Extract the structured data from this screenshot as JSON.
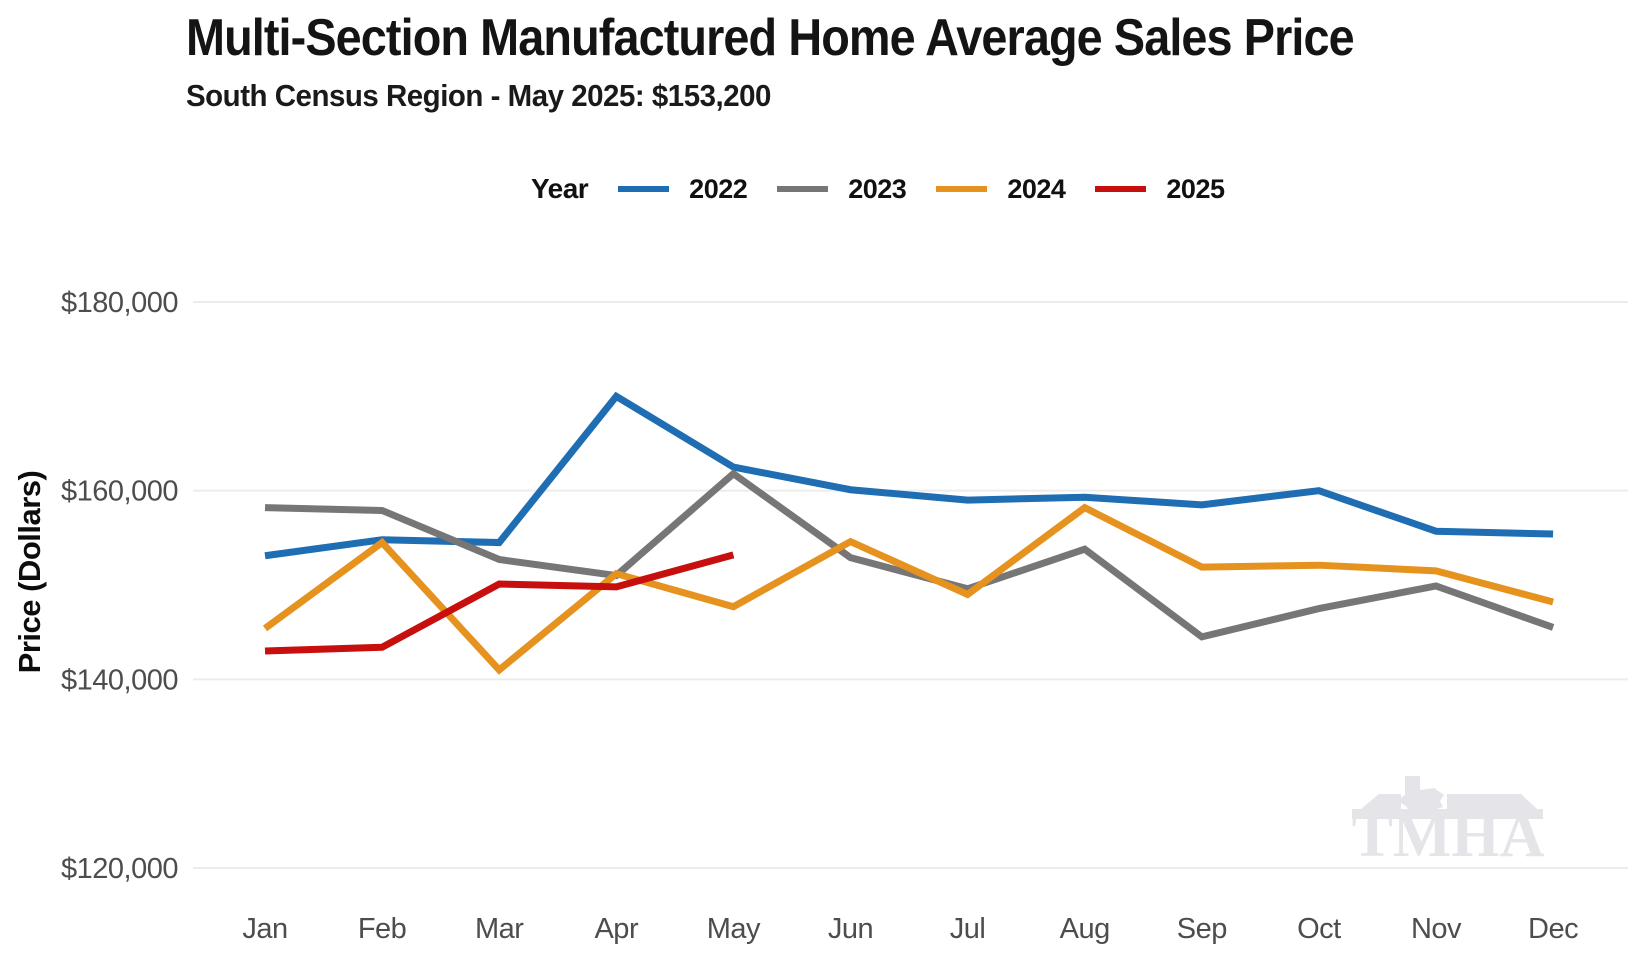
{
  "header": {
    "title": "Multi-Section Manufactured Home Average Sales Price",
    "subtitle": "South Census Region - May 2025: $153,200"
  },
  "legend": {
    "label": "Year",
    "items": [
      {
        "label": "2022",
        "color": "#1f6db2"
      },
      {
        "label": "2023",
        "color": "#767676"
      },
      {
        "label": "2024",
        "color": "#e6921e"
      },
      {
        "label": "2025",
        "color": "#c7100e"
      }
    ]
  },
  "chart_data": {
    "type": "line",
    "title": "Multi-Section Manufactured Home Average Sales Price",
    "subtitle": "South Census Region - May 2025: $153,200",
    "xlabel": "",
    "ylabel": "Price (Dollars)",
    "x_categories": [
      "Jan",
      "Feb",
      "Mar",
      "Apr",
      "May",
      "Jun",
      "Jul",
      "Aug",
      "Sep",
      "Oct",
      "Nov",
      "Dec"
    ],
    "yticks": [
      {
        "value": 120000,
        "label": "$120,000"
      },
      {
        "value": 140000,
        "label": "$140,000"
      },
      {
        "value": 160000,
        "label": "$160,000"
      },
      {
        "value": 180000,
        "label": "$180,000"
      }
    ],
    "ylim": [
      120000,
      180000
    ],
    "grid": "horizontal",
    "legend_position": "top",
    "series": [
      {
        "name": "2022",
        "color": "#1f6db2",
        "values": [
          153100,
          154800,
          154500,
          170000,
          162500,
          160100,
          159000,
          159300,
          158500,
          160000,
          155700,
          155400
        ]
      },
      {
        "name": "2023",
        "color": "#767676",
        "values": [
          158200,
          157900,
          152700,
          151000,
          161800,
          152900,
          149600,
          153800,
          144500,
          147500,
          149900,
          145500
        ]
      },
      {
        "name": "2024",
        "color": "#e6921e",
        "values": [
          145400,
          154500,
          141000,
          151200,
          147700,
          154600,
          149000,
          158200,
          151900,
          152100,
          151500,
          148200
        ]
      },
      {
        "name": "2025",
        "color": "#c7100e",
        "values": [
          143000,
          143400,
          150100,
          149800,
          153200
        ]
      }
    ],
    "highlight": {
      "month": "May",
      "year": "2025",
      "value": 153200
    }
  },
  "watermark": {
    "text": "TMHA"
  },
  "colors": {
    "gridline": "#ececec",
    "tick_text": "#4d4d4d",
    "watermark": "#e4e4e9"
  }
}
